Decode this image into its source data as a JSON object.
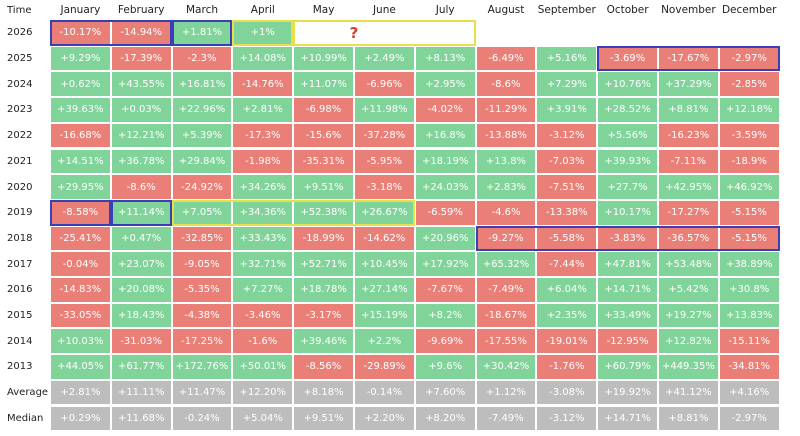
{
  "table": {
    "columns": [
      "Time",
      "January",
      "February",
      "March",
      "April",
      "May",
      "June",
      "July",
      "August",
      "September",
      "October",
      "November",
      "December"
    ],
    "note": "?",
    "rows": [
      {
        "label": "2026",
        "cells": [
          "-10.17%",
          "-14.94%",
          "+1.81%",
          "+1%"
        ]
      },
      {
        "label": "2025",
        "cells": [
          "+9.29%",
          "-17.39%",
          "-2.3%",
          "+14.08%",
          "+10.99%",
          "+2.49%",
          "+8.13%",
          "-6.49%",
          "+5.16%",
          "-3.69%",
          "-17.67%",
          "-2.97%"
        ]
      },
      {
        "label": "2024",
        "cells": [
          "+0.62%",
          "+43.55%",
          "+16.81%",
          "-14.76%",
          "+11.07%",
          "-6.96%",
          "+2.95%",
          "-8.6%",
          "+7.29%",
          "+10.76%",
          "+37.29%",
          "-2.85%"
        ]
      },
      {
        "label": "2023",
        "cells": [
          "+39.63%",
          "+0.03%",
          "+22.96%",
          "+2.81%",
          "-6.98%",
          "+11.98%",
          "-4.02%",
          "-11.29%",
          "+3.91%",
          "+28.52%",
          "+8.81%",
          "+12.18%"
        ]
      },
      {
        "label": "2022",
        "cells": [
          "-16.68%",
          "+12.21%",
          "+5.39%",
          "-17.3%",
          "-15.6%",
          "-37.28%",
          "+16.8%",
          "-13.88%",
          "-3.12%",
          "+5.56%",
          "-16.23%",
          "-3.59%"
        ]
      },
      {
        "label": "2021",
        "cells": [
          "+14.51%",
          "+36.78%",
          "+29.84%",
          "-1.98%",
          "-35.31%",
          "-5.95%",
          "+18.19%",
          "+13.8%",
          "-7.03%",
          "+39.93%",
          "-7.11%",
          "-18.9%"
        ]
      },
      {
        "label": "2020",
        "cells": [
          "+29.95%",
          "-8.6%",
          "-24.92%",
          "+34.26%",
          "+9.51%",
          "-3.18%",
          "+24.03%",
          "+2.83%",
          "-7.51%",
          "+27.7%",
          "+42.95%",
          "+46.92%"
        ]
      },
      {
        "label": "2019",
        "cells": [
          "-8.58%",
          "+11.14%",
          "+7.05%",
          "+34.36%",
          "+52.38%",
          "+26.67%",
          "-6.59%",
          "-4.6%",
          "-13.38%",
          "+10.17%",
          "-17.27%",
          "-5.15%"
        ]
      },
      {
        "label": "2018",
        "cells": [
          "-25.41%",
          "+0.47%",
          "-32.85%",
          "+33.43%",
          "-18.99%",
          "-14.62%",
          "+20.96%",
          "-9.27%",
          "-5.58%",
          "-3.83%",
          "-36.57%",
          "-5.15%"
        ]
      },
      {
        "label": "2017",
        "cells": [
          "-0.04%",
          "+23.07%",
          "-9.05%",
          "+32.71%",
          "+52.71%",
          "+10.45%",
          "+17.92%",
          "+65.32%",
          "-7.44%",
          "+47.81%",
          "+53.48%",
          "+38.89%"
        ]
      },
      {
        "label": "2016",
        "cells": [
          "-14.83%",
          "+20.08%",
          "-5.35%",
          "+7.27%",
          "+18.78%",
          "+27.14%",
          "-7.67%",
          "-7.49%",
          "+6.04%",
          "+14.71%",
          "+5.42%",
          "+30.8%"
        ]
      },
      {
        "label": "2015",
        "cells": [
          "-33.05%",
          "+18.43%",
          "-4.38%",
          "-3.46%",
          "-3.17%",
          "+15.19%",
          "+8.2%",
          "-18.67%",
          "+2.35%",
          "+33.49%",
          "+19.27%",
          "+13.83%"
        ]
      },
      {
        "label": "2014",
        "cells": [
          "+10.03%",
          "-31.03%",
          "-17.25%",
          "-1.6%",
          "+39.46%",
          "+2.2%",
          "-9.69%",
          "-17.55%",
          "-19.01%",
          "-12.95%",
          "+12.82%",
          "-15.11%"
        ]
      },
      {
        "label": "2013",
        "cells": [
          "+44.05%",
          "+61.77%",
          "+172.76%",
          "+50.01%",
          "-8.56%",
          "-29.89%",
          "+9.6%",
          "+30.42%",
          "-1.76%",
          "+60.79%",
          "+449.35%",
          "-34.81%"
        ]
      },
      {
        "label": "Average",
        "summary": true,
        "cells": [
          "+2.81%",
          "+11.11%",
          "+11.47%",
          "+12.20%",
          "+8.18%",
          "-0.14%",
          "+7.60%",
          "+1.12%",
          "-3.08%",
          "+19.92%",
          "+41.12%",
          "+4.16%"
        ]
      },
      {
        "label": "Median",
        "summary": true,
        "cells": [
          "+0.29%",
          "+11.68%",
          "-0.24%",
          "+5.04%",
          "+9.51%",
          "+2.20%",
          "+8.20%",
          "-7.49%",
          "-3.12%",
          "+14.71%",
          "+8.81%",
          "-2.97%"
        ]
      }
    ]
  }
}
